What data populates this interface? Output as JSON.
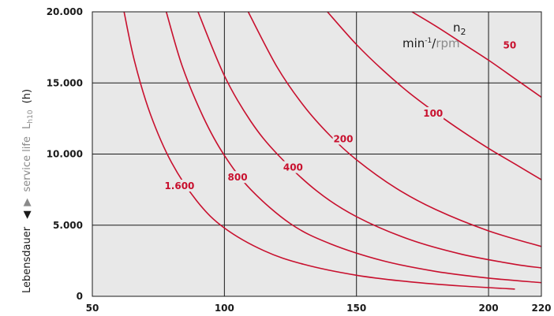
{
  "chart_data": {
    "type": "line",
    "title": "",
    "title_fragment": "",
    "xlabel": "",
    "ylabel_de": "Lebensdauer",
    "ylabel_en": "service life",
    "ylabel_sym": "L",
    "ylabel_sub": "h10",
    "ylabel_unit": "(h)",
    "legend": {
      "n": "n",
      "n_sub": "2",
      "min": "min",
      "min_sup": "-1",
      "slash": "/",
      "rpm": "rpm"
    },
    "xlim": [
      50,
      220
    ],
    "ylim": [
      0,
      20000
    ],
    "x_ticks": [
      50,
      100,
      150,
      200,
      220
    ],
    "x_tick_labels": [
      "50",
      "100",
      "150",
      "200",
      "220"
    ],
    "y_ticks": [
      0,
      5000,
      10000,
      15000,
      20000
    ],
    "y_tick_labels": [
      "0",
      "5.000",
      "10.000",
      "15.000",
      "20.000"
    ],
    "grid": true,
    "colors": {
      "curve": "#c8102e",
      "plot_bg": "#e8e8e8",
      "grid": "#1a1a1a",
      "muted": "#8a8a8a"
    },
    "series": [
      {
        "name": "1.600",
        "x": [
          62,
          66,
          72,
          80,
          90,
          100,
          115,
          130,
          150,
          170,
          190,
          210
        ],
        "y": [
          20000,
          16500,
          12800,
          9400,
          6600,
          4800,
          3200,
          2250,
          1480,
          1020,
          720,
          510
        ]
      },
      {
        "name": "800",
        "x": [
          78,
          84,
          92,
          100,
          110,
          125,
          140,
          160,
          180,
          200,
          220
        ],
        "y": [
          20000,
          16200,
          12600,
          9900,
          7500,
          5100,
          3700,
          2500,
          1750,
          1280,
          960
        ]
      },
      {
        "name": "400",
        "x": [
          90,
          100,
          110,
          120,
          135,
          150,
          170,
          190,
          210,
          220
        ],
        "y": [
          20000,
          15500,
          12300,
          10000,
          7400,
          5600,
          4000,
          2950,
          2250,
          2000
        ]
      },
      {
        "name": "200",
        "x": [
          109,
          120,
          130,
          140,
          150,
          165,
          180,
          200,
          220
        ],
        "y": [
          20000,
          16100,
          13400,
          11300,
          9600,
          7600,
          6100,
          4600,
          3500
        ]
      },
      {
        "name": "100",
        "x": [
          139,
          150,
          160,
          170,
          180,
          190,
          200,
          210,
          220
        ],
        "y": [
          20000,
          17700,
          15900,
          14300,
          12900,
          11600,
          10400,
          9300,
          8200
        ]
      },
      {
        "name": "50",
        "x": [
          171,
          180,
          190,
          200,
          210,
          220
        ],
        "y": [
          20000,
          19000,
          17800,
          16600,
          15300,
          14000
        ]
      }
    ],
    "labels": [
      {
        "text": "1.600",
        "x": 83,
        "y": 7700
      },
      {
        "text": "800",
        "x": 105,
        "y": 8300
      },
      {
        "text": "400",
        "x": 126,
        "y": 9000
      },
      {
        "text": "200",
        "x": 145,
        "y": 11000
      },
      {
        "text": "100",
        "x": 179,
        "y": 12800
      },
      {
        "text": "50",
        "x": 208,
        "y": 17600
      }
    ]
  }
}
